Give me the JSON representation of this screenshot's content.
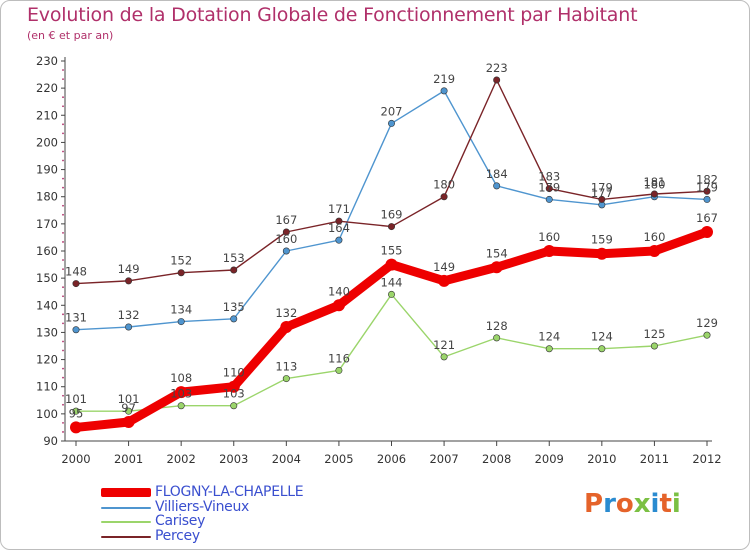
{
  "title": "Evolution de la Dotation Globale de Fonctionnement par Habitant",
  "subtitle": "(en € et par an)",
  "logo": {
    "text": "Proxiti",
    "letter_colors": [
      "#e5632a",
      "#2a8bd0",
      "#e5632a",
      "#7bc043",
      "#2a8bd0",
      "#e5632a",
      "#7bc043"
    ]
  },
  "chart_data": {
    "type": "line",
    "x": [
      "2000",
      "2001",
      "2002",
      "2003",
      "2004",
      "2005",
      "2006",
      "2007",
      "2008",
      "2009",
      "2010",
      "2011",
      "2012"
    ],
    "ylim": [
      90,
      230
    ],
    "yticks": [
      90,
      100,
      110,
      120,
      130,
      140,
      150,
      160,
      170,
      180,
      190,
      200,
      210,
      220,
      230
    ],
    "grid": false,
    "legend_position": "bottom-left",
    "series": [
      {
        "name": "FLOGNY-LA-CHAPELLE",
        "color": "#ee0000",
        "emphasis": true,
        "values": [
          95,
          97,
          108,
          110,
          132,
          140,
          155,
          149,
          154,
          160,
          159,
          160,
          167
        ]
      },
      {
        "name": "Villiers-Vineux",
        "color": "#4f95cf",
        "emphasis": false,
        "values": [
          131,
          132,
          134,
          135,
          160,
          164,
          207,
          219,
          184,
          179,
          177,
          180,
          179
        ]
      },
      {
        "name": "Carisey",
        "color": "#9bd56b",
        "emphasis": false,
        "values": [
          101,
          101,
          103,
          103,
          113,
          116,
          144,
          121,
          128,
          124,
          124,
          125,
          129
        ]
      },
      {
        "name": "Percey",
        "color": "#7a2428",
        "emphasis": false,
        "values": [
          148,
          149,
          152,
          153,
          167,
          171,
          169,
          180,
          223,
          183,
          179,
          181,
          182
        ]
      }
    ]
  }
}
